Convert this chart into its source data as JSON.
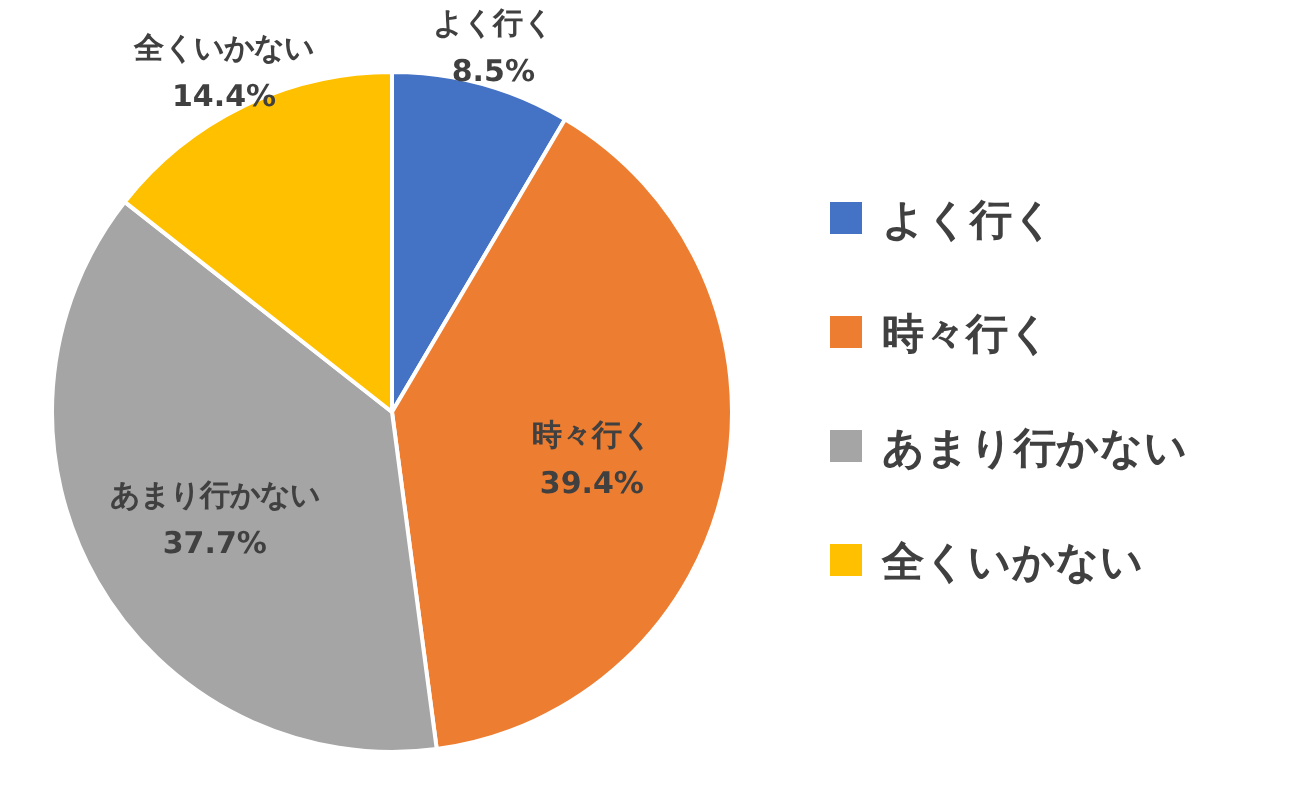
{
  "chart_data": {
    "type": "pie",
    "categories": [
      "よく行く",
      "時々行く",
      "あまり行かない",
      "全くいかない"
    ],
    "values": [
      8.5,
      39.4,
      37.7,
      14.4
    ],
    "colors": [
      "#4472c4",
      "#ed7d31",
      "#a5a5a5",
      "#ffc000"
    ],
    "value_labels": [
      "8.5%",
      "39.4%",
      "37.7%",
      "14.4%"
    ],
    "legend": "right"
  }
}
